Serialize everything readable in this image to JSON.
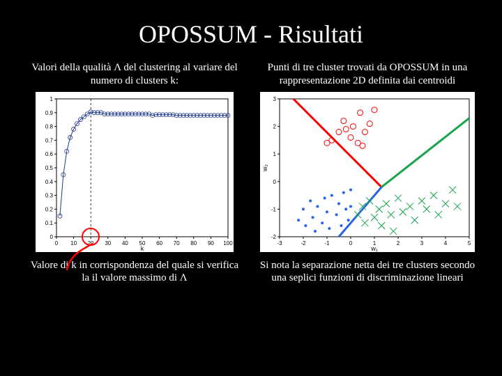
{
  "title": "OPOSSUM - Risultati",
  "left": {
    "caption_top": "Valori della qualità Λ del clustering al variare del numero di clusters k:",
    "caption_bottom": "Valore di k in corrispondenza del quale si verifica la il valore massimo di Λ",
    "chart": {
      "type": "line",
      "background": "#ffffff",
      "xlabel": "k",
      "xlim": [
        0,
        100
      ],
      "xticks": [
        0,
        10,
        20,
        30,
        40,
        50,
        60,
        70,
        80,
        90,
        100
      ],
      "ylim": [
        0,
        1
      ],
      "yticks": [
        0,
        0.1,
        0.2,
        0.3,
        0.4,
        0.5,
        0.6,
        0.7,
        0.8,
        0.9,
        1
      ],
      "series": {
        "color": "#1f3a8a",
        "marker": "circle",
        "marker_size": 3,
        "x": [
          2,
          4,
          6,
          8,
          10,
          12,
          14,
          16,
          18,
          20,
          22,
          24,
          26,
          28,
          30,
          32,
          34,
          36,
          38,
          40,
          42,
          44,
          46,
          48,
          50,
          52,
          54,
          56,
          58,
          60,
          62,
          64,
          66,
          68,
          70,
          72,
          74,
          76,
          78,
          80,
          82,
          84,
          86,
          88,
          90,
          92,
          94,
          96,
          98,
          100
        ],
        "y": [
          0.15,
          0.45,
          0.62,
          0.72,
          0.78,
          0.82,
          0.85,
          0.87,
          0.89,
          0.905,
          0.9,
          0.9,
          0.9,
          0.89,
          0.89,
          0.89,
          0.89,
          0.89,
          0.89,
          0.89,
          0.89,
          0.89,
          0.89,
          0.89,
          0.89,
          0.89,
          0.89,
          0.88,
          0.885,
          0.885,
          0.885,
          0.885,
          0.885,
          0.885,
          0.88,
          0.88,
          0.88,
          0.88,
          0.88,
          0.88,
          0.88,
          0.88,
          0.88,
          0.88,
          0.88,
          0.88,
          0.88,
          0.88,
          0.88,
          0.88
        ]
      },
      "highlight_x": 20,
      "highlight_color": "#ff0000",
      "vline_color": "#000000",
      "vline_dash": "3,3"
    }
  },
  "right": {
    "caption_top": "Punti di tre cluster trovati da OPOSSUM in una rappresentazione 2D definita dai centroidi",
    "caption_bottom": "Si nota la separazione netta dei tre clusters secondo una seplici funzioni di discriminazione lineari",
    "chart": {
      "type": "scatter",
      "background": "#ffffff",
      "xlabel": "w₁",
      "ylabel": "w₂",
      "xlim": [
        -3,
        5
      ],
      "xticks": [
        -3,
        -2,
        -1,
        0,
        1,
        2,
        3,
        4,
        5
      ],
      "ylim": [
        -2,
        3
      ],
      "yticks": [
        -2,
        -1,
        0,
        1,
        2,
        3
      ],
      "clusters": [
        {
          "marker": "circle",
          "color": "#ff0000",
          "size": 4,
          "points": [
            [
              -1.0,
              1.4
            ],
            [
              -0.8,
              1.5
            ],
            [
              -0.5,
              1.8
            ],
            [
              -0.3,
              2.2
            ],
            [
              -0.2,
              1.9
            ],
            [
              0.0,
              1.6
            ],
            [
              0.1,
              2.0
            ],
            [
              0.3,
              1.4
            ],
            [
              0.4,
              2.5
            ],
            [
              0.5,
              1.3
            ],
            [
              0.6,
              1.8
            ],
            [
              0.8,
              2.1
            ],
            [
              1.0,
              2.6
            ]
          ]
        },
        {
          "marker": "x",
          "color": "#16a34a",
          "size": 5,
          "points": [
            [
              0.3,
              -1.2
            ],
            [
              0.5,
              -0.9
            ],
            [
              0.6,
              -1.5
            ],
            [
              0.8,
              -0.7
            ],
            [
              1.0,
              -1.3
            ],
            [
              1.2,
              -1.0
            ],
            [
              1.3,
              -1.6
            ],
            [
              1.5,
              -0.8
            ],
            [
              1.7,
              -1.2
            ],
            [
              1.8,
              -1.8
            ],
            [
              2.0,
              -0.6
            ],
            [
              2.2,
              -1.1
            ],
            [
              2.5,
              -0.9
            ],
            [
              2.7,
              -1.4
            ],
            [
              3.0,
              -0.7
            ],
            [
              3.2,
              -1.0
            ],
            [
              3.5,
              -0.5
            ],
            [
              3.7,
              -1.2
            ],
            [
              4.0,
              -0.8
            ],
            [
              4.3,
              -0.3
            ],
            [
              4.5,
              -0.9
            ]
          ]
        },
        {
          "marker": "dot",
          "color": "#2563eb",
          "size": 2,
          "points": [
            [
              -2.2,
              -1.4
            ],
            [
              -2.0,
              -1.0
            ],
            [
              -1.9,
              -1.6
            ],
            [
              -1.7,
              -0.7
            ],
            [
              -1.6,
              -1.3
            ],
            [
              -1.5,
              -1.8
            ],
            [
              -1.4,
              -0.9
            ],
            [
              -1.2,
              -1.5
            ],
            [
              -1.1,
              -0.6
            ],
            [
              -1.0,
              -1.1
            ],
            [
              -0.9,
              -1.7
            ],
            [
              -0.8,
              -0.5
            ],
            [
              -0.6,
              -1.2
            ],
            [
              -0.5,
              -0.8
            ],
            [
              -0.4,
              -1.6
            ],
            [
              -0.3,
              -0.4
            ],
            [
              -0.2,
              -1.0
            ],
            [
              -0.1,
              -1.4
            ],
            [
              0.0,
              -0.3
            ],
            [
              0.0,
              -0.9
            ]
          ]
        }
      ],
      "lines": [
        {
          "color": "#ff0000",
          "width": 3,
          "p1": [
            -3,
            3.5
          ],
          "p2": [
            1.3,
            -0.2
          ]
        },
        {
          "color": "#16a34a",
          "width": 3,
          "p1": [
            1.3,
            -0.2
          ],
          "p2": [
            5,
            2.3
          ]
        },
        {
          "color": "#2563eb",
          "width": 3,
          "p1": [
            1.3,
            -0.2
          ],
          "p2": [
            -0.5,
            -2
          ]
        }
      ]
    }
  }
}
